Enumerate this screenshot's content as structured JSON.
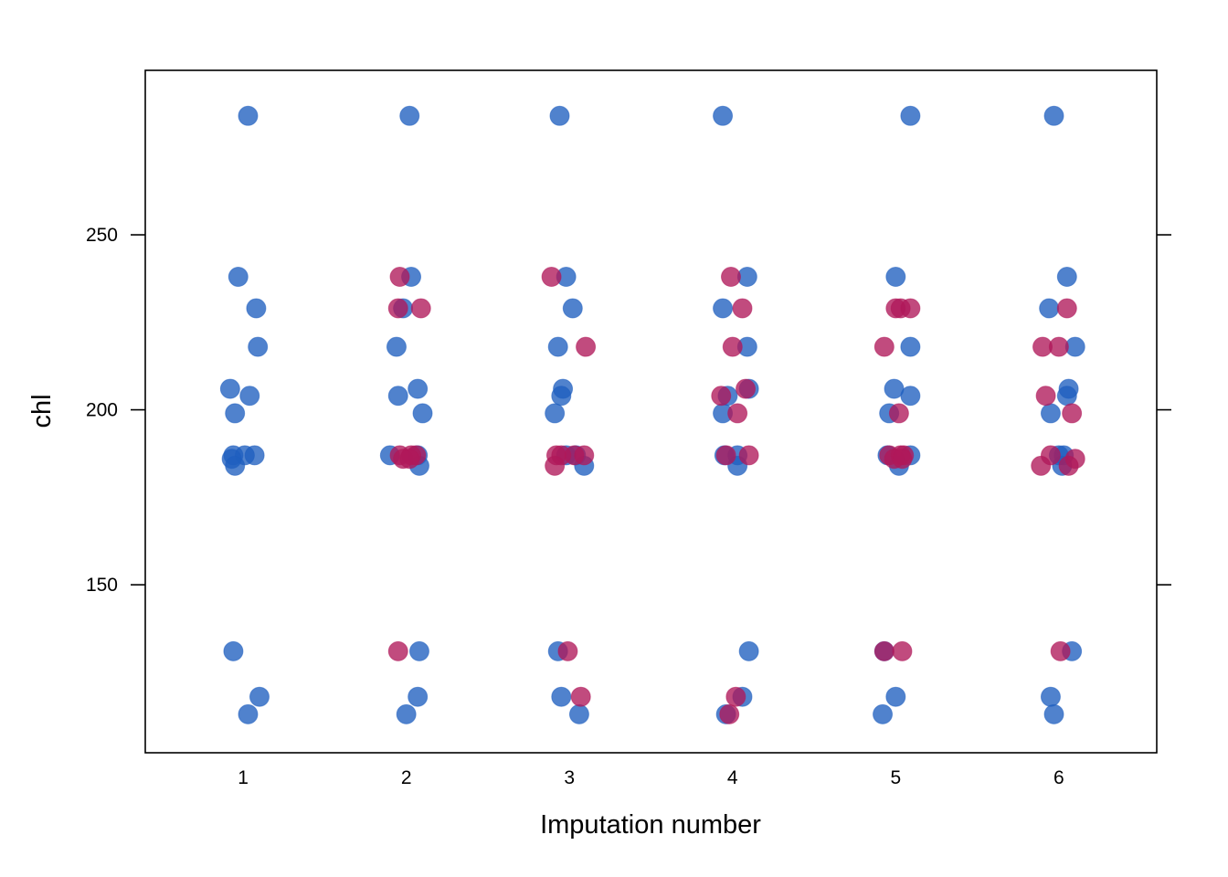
{
  "chart_data": {
    "type": "scatter",
    "title": "",
    "xlabel": "Imputation number",
    "ylabel": "chl",
    "xlim": [
      0.4,
      6.6
    ],
    "ylim": [
      102,
      297
    ],
    "x_ticks": [
      1,
      2,
      3,
      4,
      5,
      6
    ],
    "y_ticks": [
      150,
      200,
      250
    ],
    "grid": false,
    "legend": "none",
    "colors": {
      "observed": "#1f5fbf",
      "imputed": "#b0185a"
    },
    "series": [
      {
        "values": [
          [
            1.03,
            284
          ],
          [
            0.97,
            238
          ],
          [
            1.08,
            229
          ],
          [
            1.09,
            218
          ],
          [
            0.92,
            206
          ],
          [
            1.04,
            204
          ],
          [
            0.95,
            199
          ],
          [
            0.94,
            187
          ],
          [
            1.01,
            187
          ],
          [
            1.07,
            187
          ],
          [
            0.93,
            186
          ],
          [
            0.95,
            184
          ],
          [
            0.94,
            131
          ],
          [
            1.1,
            118
          ],
          [
            1.03,
            113
          ],
          [
            2.02,
            284
          ],
          [
            2.03,
            238
          ],
          [
            1.98,
            229
          ],
          [
            1.94,
            218
          ],
          [
            2.07,
            206
          ],
          [
            1.95,
            204
          ],
          [
            2.1,
            199
          ],
          [
            1.9,
            187
          ],
          [
            2.07,
            187
          ],
          [
            2.08,
            184
          ],
          [
            2.08,
            131
          ],
          [
            2.07,
            118
          ],
          [
            2.0,
            113
          ],
          [
            2.94,
            284
          ],
          [
            2.98,
            238
          ],
          [
            3.02,
            229
          ],
          [
            2.93,
            218
          ],
          [
            2.96,
            206
          ],
          [
            2.95,
            204
          ],
          [
            2.91,
            199
          ],
          [
            2.98,
            187
          ],
          [
            3.04,
            187
          ],
          [
            3.09,
            184
          ],
          [
            2.93,
            131
          ],
          [
            2.95,
            118
          ],
          [
            3.06,
            113
          ],
          [
            3.94,
            284
          ],
          [
            4.09,
            238
          ],
          [
            3.94,
            229
          ],
          [
            4.09,
            218
          ],
          [
            4.1,
            206
          ],
          [
            3.97,
            204
          ],
          [
            3.94,
            199
          ],
          [
            3.95,
            187
          ],
          [
            4.03,
            187
          ],
          [
            4.03,
            184
          ],
          [
            4.1,
            131
          ],
          [
            4.06,
            118
          ],
          [
            3.96,
            113
          ],
          [
            5.09,
            284
          ],
          [
            5.0,
            238
          ],
          [
            5.09,
            218
          ],
          [
            4.99,
            206
          ],
          [
            5.09,
            204
          ],
          [
            4.96,
            199
          ],
          [
            4.95,
            187
          ],
          [
            5.09,
            187
          ],
          [
            5.02,
            184
          ],
          [
            4.93,
            131
          ],
          [
            5.0,
            118
          ],
          [
            4.92,
            113
          ],
          [
            5.97,
            284
          ],
          [
            6.05,
            238
          ],
          [
            5.94,
            229
          ],
          [
            6.1,
            218
          ],
          [
            6.06,
            206
          ],
          [
            6.05,
            204
          ],
          [
            5.95,
            199
          ],
          [
            6.0,
            187
          ],
          [
            6.03,
            187
          ],
          [
            6.02,
            184
          ],
          [
            6.08,
            131
          ],
          [
            5.95,
            118
          ],
          [
            5.97,
            113
          ]
        ]
      },
      {
        "values": [
          [
            1.96,
            238
          ],
          [
            1.95,
            229
          ],
          [
            2.09,
            229
          ],
          [
            1.96,
            187
          ],
          [
            2.03,
            187
          ],
          [
            2.06,
            187
          ],
          [
            1.98,
            186
          ],
          [
            2.02,
            186
          ],
          [
            1.95,
            131
          ],
          [
            2.89,
            238
          ],
          [
            3.1,
            218
          ],
          [
            2.92,
            187
          ],
          [
            2.95,
            187
          ],
          [
            3.03,
            187
          ],
          [
            3.09,
            187
          ],
          [
            2.91,
            184
          ],
          [
            2.99,
            131
          ],
          [
            3.07,
            118
          ],
          [
            3.99,
            238
          ],
          [
            4.06,
            229
          ],
          [
            4.0,
            218
          ],
          [
            4.08,
            206
          ],
          [
            3.93,
            204
          ],
          [
            4.03,
            199
          ],
          [
            3.96,
            187
          ],
          [
            4.1,
            187
          ],
          [
            4.02,
            118
          ],
          [
            3.98,
            113
          ],
          [
            5.0,
            229
          ],
          [
            5.03,
            229
          ],
          [
            5.09,
            229
          ],
          [
            4.93,
            218
          ],
          [
            5.02,
            199
          ],
          [
            4.96,
            187
          ],
          [
            5.03,
            187
          ],
          [
            5.05,
            187
          ],
          [
            4.99,
            186
          ],
          [
            5.04,
            186
          ],
          [
            4.93,
            131
          ],
          [
            5.04,
            131
          ],
          [
            5.9,
            218
          ],
          [
            6.0,
            218
          ],
          [
            6.05,
            229
          ],
          [
            5.92,
            204
          ],
          [
            6.08,
            199
          ],
          [
            5.95,
            187
          ],
          [
            6.1,
            186
          ],
          [
            5.89,
            184
          ],
          [
            6.06,
            184
          ],
          [
            6.01,
            131
          ]
        ]
      }
    ]
  }
}
